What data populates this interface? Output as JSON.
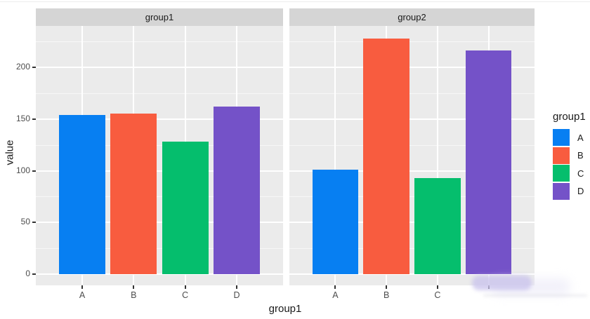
{
  "chart_data": {
    "type": "bar",
    "faceted": true,
    "categories": [
      "A",
      "B",
      "C",
      "D"
    ],
    "facets": [
      {
        "strip_label": "group1",
        "values": [
          154,
          155,
          128,
          162
        ],
        "x_tick_labels": [
          "A",
          "B",
          "C",
          "D"
        ]
      },
      {
        "strip_label": "group2",
        "values": [
          101,
          228,
          93,
          216
        ],
        "x_tick_labels": [
          "A",
          "B",
          "C",
          ""
        ],
        "note": "fourth x tick label obscured by a blurred smudge artifact"
      }
    ],
    "series_colors": {
      "A": "#077FF2",
      "B": "#F85C3F",
      "C": "#05BE6D",
      "D": "#7452C8"
    },
    "xlabel": "group1",
    "ylabel": "value",
    "y_ticks": [
      0,
      50,
      100,
      150,
      200
    ],
    "y_minor_ticks": [
      25,
      75,
      125,
      175,
      225
    ],
    "ylim": [
      0,
      240
    ],
    "grid": true,
    "legend": {
      "title": "group1",
      "position": "right",
      "entries": [
        {
          "label": "A",
          "color": "#077FF2"
        },
        {
          "label": "B",
          "color": "#F85C3F"
        },
        {
          "label": "C",
          "color": "#05BE6D"
        },
        {
          "label": "D",
          "color": "#7452C8"
        }
      ]
    },
    "panel_background": "#EBEBEB",
    "strip_background": "#D5D5D5",
    "gridline_color": "#FFFFFF",
    "axis_text_color": "#4D4D4D"
  }
}
